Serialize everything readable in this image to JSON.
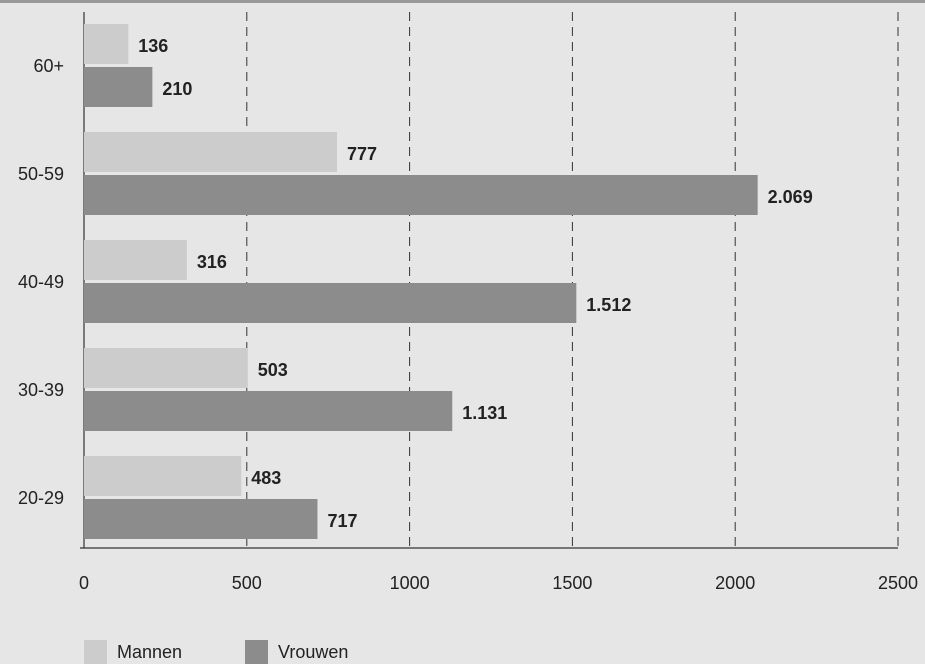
{
  "chart_data": {
    "type": "barh",
    "categories": [
      "60+",
      "50-59",
      "40-49",
      "30-39",
      "20-29"
    ],
    "series": [
      {
        "name": "Mannen",
        "color": "#cccccc",
        "values": [
          136,
          777,
          316,
          503,
          483
        ],
        "value_labels": [
          "136",
          "777",
          "316",
          "503",
          "483"
        ]
      },
      {
        "name": "Vrouwen",
        "color": "#8c8c8c",
        "values": [
          210,
          2069,
          1512,
          1131,
          717
        ],
        "value_labels": [
          "210",
          "2.069",
          "1.512",
          "1.131",
          "717"
        ]
      }
    ],
    "xlim": [
      0,
      2500
    ],
    "xticks": [
      0,
      500,
      1000,
      1500,
      2000,
      2500
    ],
    "grid": true,
    "legend": "bottom-left"
  }
}
